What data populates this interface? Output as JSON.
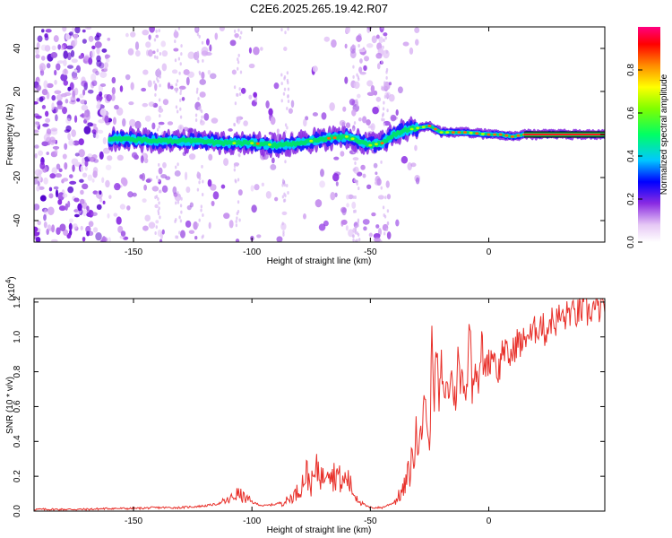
{
  "title": "C2E6.2025.265.19.42.R07",
  "chart_data": [
    {
      "type": "heatmap",
      "name": "spectrogram",
      "xlabel": "Height of straight line (km)",
      "ylabel": "Frequency (Hz)",
      "xlim": [
        -192,
        49
      ],
      "ylim": [
        -50,
        50
      ],
      "xticks": [
        -150,
        -100,
        -50,
        0
      ],
      "xtick_labels": [
        "-150",
        "-100",
        "-50",
        "0"
      ],
      "yticks": [
        -40,
        -20,
        0,
        20,
        40
      ],
      "ytick_labels": [
        "-40",
        "-20",
        "0",
        "20",
        "40"
      ],
      "colorbar": {
        "label": "Normalized spectral amplitude",
        "range": [
          0,
          1
        ],
        "ticks": [
          0.0,
          0.2,
          0.4,
          0.6,
          0.8
        ],
        "tick_labels": [
          "0.0",
          "0.2",
          "0.4",
          "0.6",
          "0.8"
        ]
      },
      "ridge_frequency": {
        "x": [
          -155,
          -140,
          -125,
          -110,
          -100,
          -90,
          -80,
          -70,
          -60,
          -50,
          -45,
          -40,
          -35,
          -30,
          -25,
          -20,
          -10,
          0,
          5,
          10,
          15,
          20,
          49
        ],
        "y": [
          -2,
          -3,
          -3,
          -4,
          -4,
          -5,
          -4,
          -2,
          -1,
          -5,
          -4,
          0,
          2,
          3,
          4,
          1,
          1,
          0,
          0,
          -1,
          0,
          0,
          0
        ]
      }
    },
    {
      "type": "line",
      "name": "snr",
      "xlabel": "Height of straight line (km)",
      "ylabel": "SNR (10 * v/v)",
      "multiplier": "(x10",
      "multiplier_exp": "4",
      "multiplier_close": ")",
      "xlim": [
        -192,
        49
      ],
      "ylim": [
        0,
        1.22
      ],
      "xticks": [
        -150,
        -100,
        -50,
        0
      ],
      "xtick_labels": [
        "-150",
        "-100",
        "-50",
        "0"
      ],
      "yticks": [
        0.0,
        0.2,
        0.4,
        0.6,
        0.8,
        1.0,
        1.2
      ],
      "ytick_labels": [
        "0.0",
        "0.2",
        "0.4",
        "0.6",
        "0.8",
        "1.0",
        "1.2"
      ],
      "series": [
        {
          "name": "SNR",
          "color": "#e8302a",
          "x": [
            -192,
            -180,
            -170,
            -160,
            -150,
            -140,
            -130,
            -120,
            -115,
            -110,
            -106,
            -100,
            -95,
            -90,
            -85,
            -80,
            -77,
            -75,
            -72,
            -70,
            -68,
            -66,
            -64,
            -62,
            -60,
            -57,
            -55,
            -52,
            -50,
            -45,
            -40,
            -36,
            -33,
            -31,
            -30,
            -29,
            -28,
            -27,
            -26,
            -25,
            -24,
            -23,
            -22,
            -21,
            -20,
            -19,
            -18,
            -17,
            -16,
            -15,
            -14,
            -13,
            -12,
            -11,
            -10,
            -9,
            -8,
            -7,
            -6,
            -5,
            -4,
            -3,
            -2,
            -1,
            0,
            2,
            4,
            6,
            8,
            10,
            12,
            14,
            16,
            18,
            20,
            22,
            24,
            26,
            28,
            30,
            32,
            34,
            36,
            38,
            40,
            42,
            44,
            46,
            48,
            49
          ],
          "y": [
            0.01,
            0.01,
            0.01,
            0.015,
            0.015,
            0.02,
            0.02,
            0.03,
            0.04,
            0.06,
            0.1,
            0.05,
            0.03,
            0.04,
            0.06,
            0.12,
            0.22,
            0.15,
            0.25,
            0.18,
            0.32,
            0.2,
            0.22,
            0.15,
            0.2,
            0.1,
            0.07,
            0.03,
            0.02,
            0.02,
            0.05,
            0.12,
            0.25,
            0.4,
            0.35,
            0.55,
            0.45,
            0.7,
            0.5,
            0.3,
            1.05,
            0.65,
            0.95,
            0.6,
            0.85,
            0.62,
            0.75,
            0.65,
            0.8,
            0.7,
            0.62,
            0.9,
            0.72,
            0.8,
            0.68,
            0.76,
            1.13,
            0.7,
            0.85,
            0.8,
            0.72,
            1.0,
            0.78,
            0.88,
            0.85,
            0.92,
            0.78,
            0.95,
            0.88,
            0.9,
            0.98,
            0.95,
            1.02,
            1.0,
            1.05,
            1.08,
            1.02,
            1.1,
            1.08,
            1.12,
            1.1,
            1.15,
            1.12,
            1.14,
            1.16,
            1.13,
            1.17,
            1.15,
            1.18,
            1.14
          ]
        }
      ]
    }
  ]
}
